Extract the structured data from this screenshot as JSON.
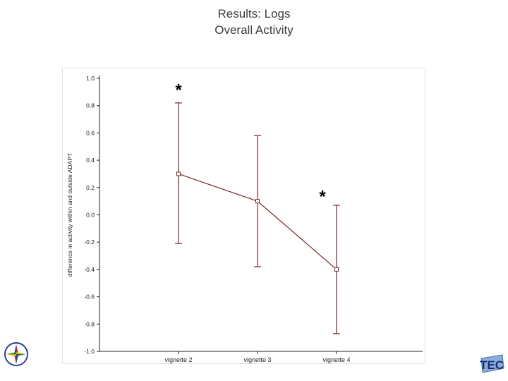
{
  "slide": {
    "title_line1": "Results: Logs",
    "title_line2": "Overall Activity"
  },
  "colors": {
    "accent_red": "#ff0000",
    "accent_blue": "#2222cc",
    "series": "#7a2525",
    "axis": "#222222"
  },
  "chart_data": {
    "type": "line",
    "categories": [
      "vignette 2",
      "vignette 3",
      "vignette 4"
    ],
    "series": [
      {
        "name": "difference in activity",
        "values": [
          0.3,
          0.1,
          -0.4
        ],
        "error_low": [
          -0.21,
          -0.38,
          -0.87
        ],
        "error_high": [
          0.82,
          0.58,
          0.07
        ]
      }
    ],
    "title": "",
    "xlabel": "",
    "ylabel": "difference in activity within and outside ADAPT",
    "ylim": [
      -1.0,
      1.0
    ],
    "yticks": [
      1.0,
      0.8,
      0.6,
      0.4,
      0.2,
      0.0,
      -0.2,
      -0.4,
      -0.6,
      -0.8,
      -1.0
    ],
    "grid": false,
    "legend": false,
    "marker": "open-square",
    "annotations": [
      {
        "text": "*",
        "category_index": 0,
        "y": 0.91,
        "dx": 0
      },
      {
        "text": "*",
        "category_index": 2,
        "y": 0.13,
        "dx": -20
      }
    ]
  },
  "logos": {
    "bottom_left": "compass-logo",
    "bottom_right_text": "TEC"
  }
}
